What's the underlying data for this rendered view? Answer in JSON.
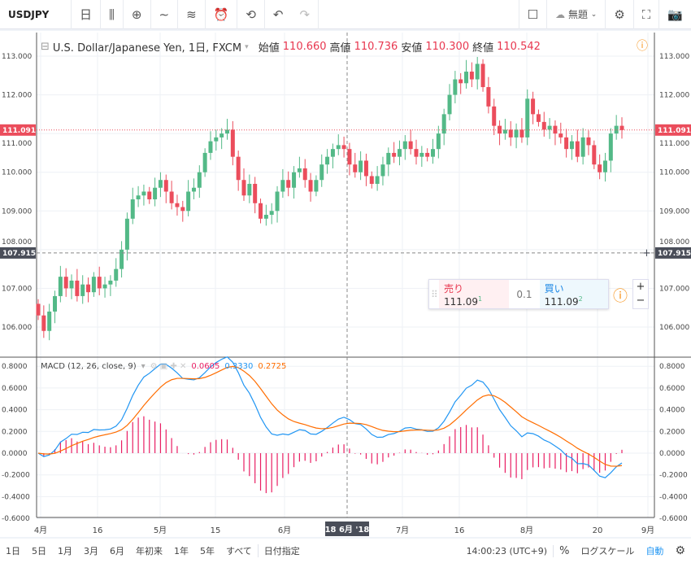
{
  "toolbar": {
    "symbol": "USDJPY",
    "interval": "日",
    "layout_name": "無題",
    "icons": [
      "candles-icon",
      "plus-circle-icon",
      "line-icon",
      "indicators-icon",
      "alert-icon",
      "replay-icon",
      "undo-icon",
      "redo-icon",
      "square-icon",
      "cloud-icon",
      "gear-icon",
      "fullscreen-icon",
      "camera-icon"
    ]
  },
  "legend": {
    "title": "U.S. Dollar/Japanese Yen, 1日, FXCM",
    "open_label": "始値",
    "open": "110.660",
    "high_label": "高値",
    "high": "110.736",
    "low_label": "安値",
    "low": "110.300",
    "close_label": "終値",
    "close": "110.542"
  },
  "price_axis": {
    "ticks": [
      "113.000",
      "112.000",
      "111.000",
      "110.000",
      "109.000",
      "108.000",
      "107.000",
      "106.000"
    ],
    "current_price": "111.091",
    "crosshair_price": "107.915"
  },
  "macd": {
    "label": "MACD (12, 26, close, 9)",
    "hist": "0.0605",
    "macd": "0.3330",
    "signal": "0.2725",
    "ticks": [
      "0.8000",
      "0.6000",
      "0.4000",
      "0.2000",
      "0.0000",
      "-0.2000",
      "-0.4000",
      "-0.6000"
    ]
  },
  "time_axis": {
    "labels": [
      "4月",
      "16",
      "5月",
      "15",
      "6月",
      "7月",
      "16",
      "8月",
      "20",
      "9月"
    ],
    "crosshair": "18 6月 '18"
  },
  "trade": {
    "sell_label": "売り",
    "sell_price": "111.09",
    "sell_sup": "1",
    "spread": "0.1",
    "buy_label": "買い",
    "buy_price": "111.09",
    "buy_sup": "2"
  },
  "bottom": {
    "ranges": [
      "1日",
      "5日",
      "1月",
      "3月",
      "6月",
      "年初来",
      "1年",
      "5年",
      "すべて"
    ],
    "date_range": "日付指定",
    "time": "14:00:23 (UTC+9)",
    "percent": "%",
    "log": "ログスケール",
    "auto": "自動"
  },
  "colors": {
    "up": "#53b987",
    "down": "#eb4d5c",
    "macd": "#2196f3",
    "signal": "#ff6d00",
    "hist": "#e91e63"
  },
  "chart_data": {
    "type": "candlestick",
    "y_range": [
      105.4,
      113.6
    ],
    "closes": [
      106.3,
      105.9,
      106.4,
      106.8,
      107.3,
      107.0,
      107.2,
      106.8,
      107.1,
      106.9,
      107.3,
      107.0,
      107.1,
      107.2,
      107.5,
      108.0,
      108.8,
      109.3,
      109.4,
      109.5,
      109.3,
      109.6,
      109.8,
      109.5,
      109.2,
      109.1,
      109.0,
      109.5,
      109.6,
      110.0,
      110.5,
      110.8,
      110.9,
      111.0,
      111.1,
      110.4,
      109.8,
      109.4,
      109.7,
      109.2,
      108.8,
      108.9,
      109.0,
      109.5,
      109.8,
      109.6,
      110.0,
      110.1,
      109.8,
      109.5,
      109.8,
      110.2,
      110.4,
      110.6,
      110.7,
      110.6,
      110.2,
      110.0,
      110.3,
      109.9,
      109.7,
      109.9,
      110.2,
      110.5,
      110.4,
      110.6,
      110.8,
      110.6,
      110.4,
      110.5,
      110.4,
      110.6,
      111.0,
      111.5,
      112.0,
      112.4,
      112.3,
      112.6,
      112.4,
      112.8,
      112.2,
      111.7,
      111.2,
      111.0,
      111.1,
      110.9,
      111.1,
      110.9,
      111.9,
      111.5,
      111.3,
      111.1,
      111.2,
      111.0,
      110.9,
      110.6,
      110.8,
      110.4,
      110.9,
      110.7,
      110.2,
      110.0,
      110.3,
      111.0,
      111.2,
      111.09
    ]
  }
}
